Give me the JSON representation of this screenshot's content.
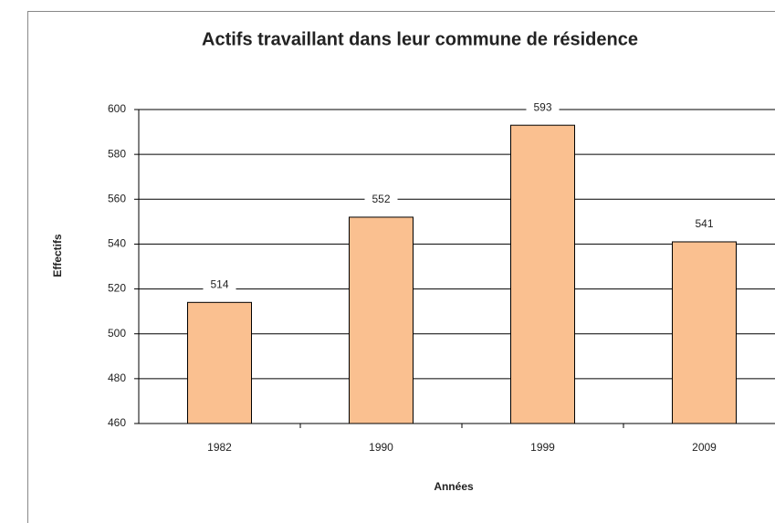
{
  "chart_data": {
    "type": "bar",
    "title": "Actifs travaillant dans leur commune de résidence",
    "x_label": "Années",
    "y_label": "Effectifs",
    "categories": [
      "1982",
      "1990",
      "1999",
      "2009"
    ],
    "values": [
      514,
      552,
      593,
      541
    ],
    "color": "#fac090",
    "ylim": [
      460,
      600
    ],
    "yticks": [
      460,
      480,
      500,
      520,
      540,
      560,
      580,
      600
    ],
    "grid": true
  }
}
